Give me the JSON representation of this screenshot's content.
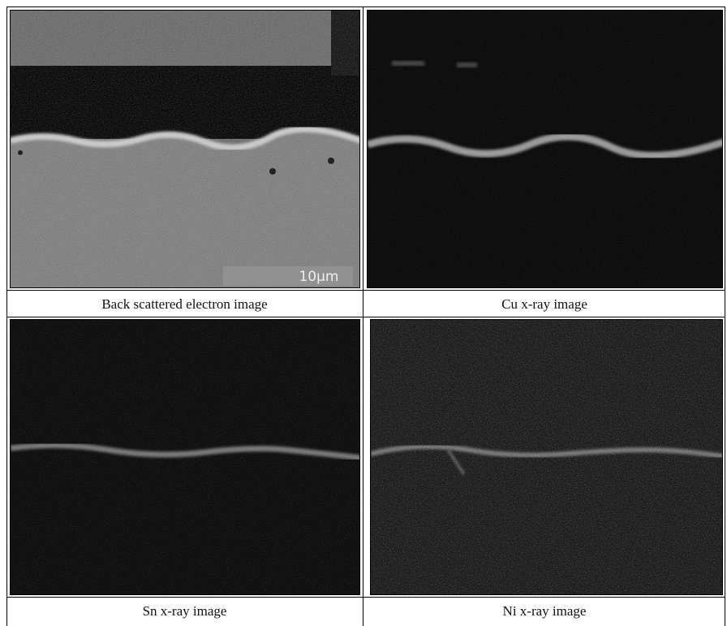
{
  "panels": [
    {
      "caption": "Back scattered electron image",
      "scale_bar": "10μm"
    },
    {
      "caption": "Cu x-ray image"
    },
    {
      "caption": "Sn x-ray image"
    },
    {
      "caption": "Ni x-ray image"
    }
  ]
}
